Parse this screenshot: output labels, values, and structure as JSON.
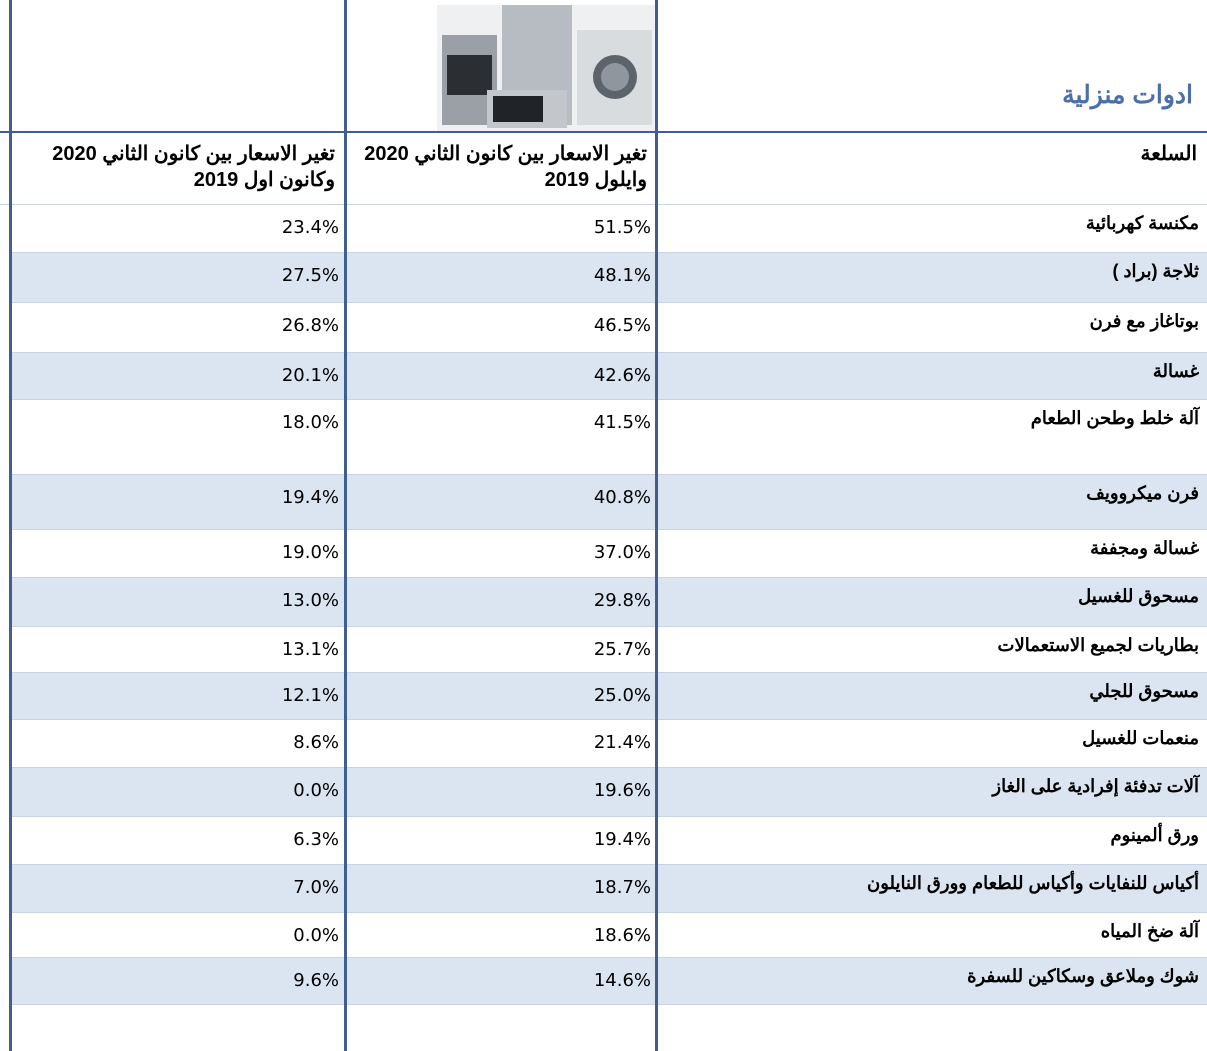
{
  "header": {
    "title": "ادوات منزلية"
  },
  "table": {
    "columns": [
      "السلعة",
      "تغير الاسعار بين كانون الثاني 2020 وايلول 2019",
      "تغير الاسعار بين كانون الثاني 2020 وكانون اول 2019"
    ],
    "rows": [
      [
        "مكنسة كهربائية",
        "51.5%",
        "23.4%"
      ],
      [
        "ثلاجة  (براد )",
        "48.1%",
        "27.5%"
      ],
      [
        "بوتاغاز مع فرن",
        "46.5%",
        "26.8%"
      ],
      [
        "غسالة",
        "42.6%",
        "20.1%"
      ],
      [
        "آلة  خلط وطحن الطعام",
        "41.5%",
        "18.0%"
      ],
      [
        "فرن ميكروويف",
        "40.8%",
        "19.4%"
      ],
      [
        "غسالة ومجففة",
        "37.0%",
        "19.0%"
      ],
      [
        "مسحوق للغسيل",
        "29.8%",
        "13.0%"
      ],
      [
        "بطاريات لجميع  الاستعمالات",
        "25.7%",
        "13.1%"
      ],
      [
        "مسحوق للجلي",
        "25.0%",
        "12.1%"
      ],
      [
        "منعمات  للغسيل",
        "21.4%",
        "8.6%"
      ],
      [
        "آلات تدفئة إفرادية على الغاز",
        "19.6%",
        "0.0%"
      ],
      [
        "ورق ألمينوم",
        "19.4%",
        "6.3%"
      ],
      [
        "أكياس للنفايات وأكياس للطعام وورق النايلون",
        "18.7%",
        "7.0%"
      ],
      [
        "آلة ضخ المياه",
        "18.6%",
        "0.0%"
      ],
      [
        "شوك  وملاعق وسكاكين  للسفرة",
        "14.6%",
        "9.6%"
      ]
    ]
  }
}
